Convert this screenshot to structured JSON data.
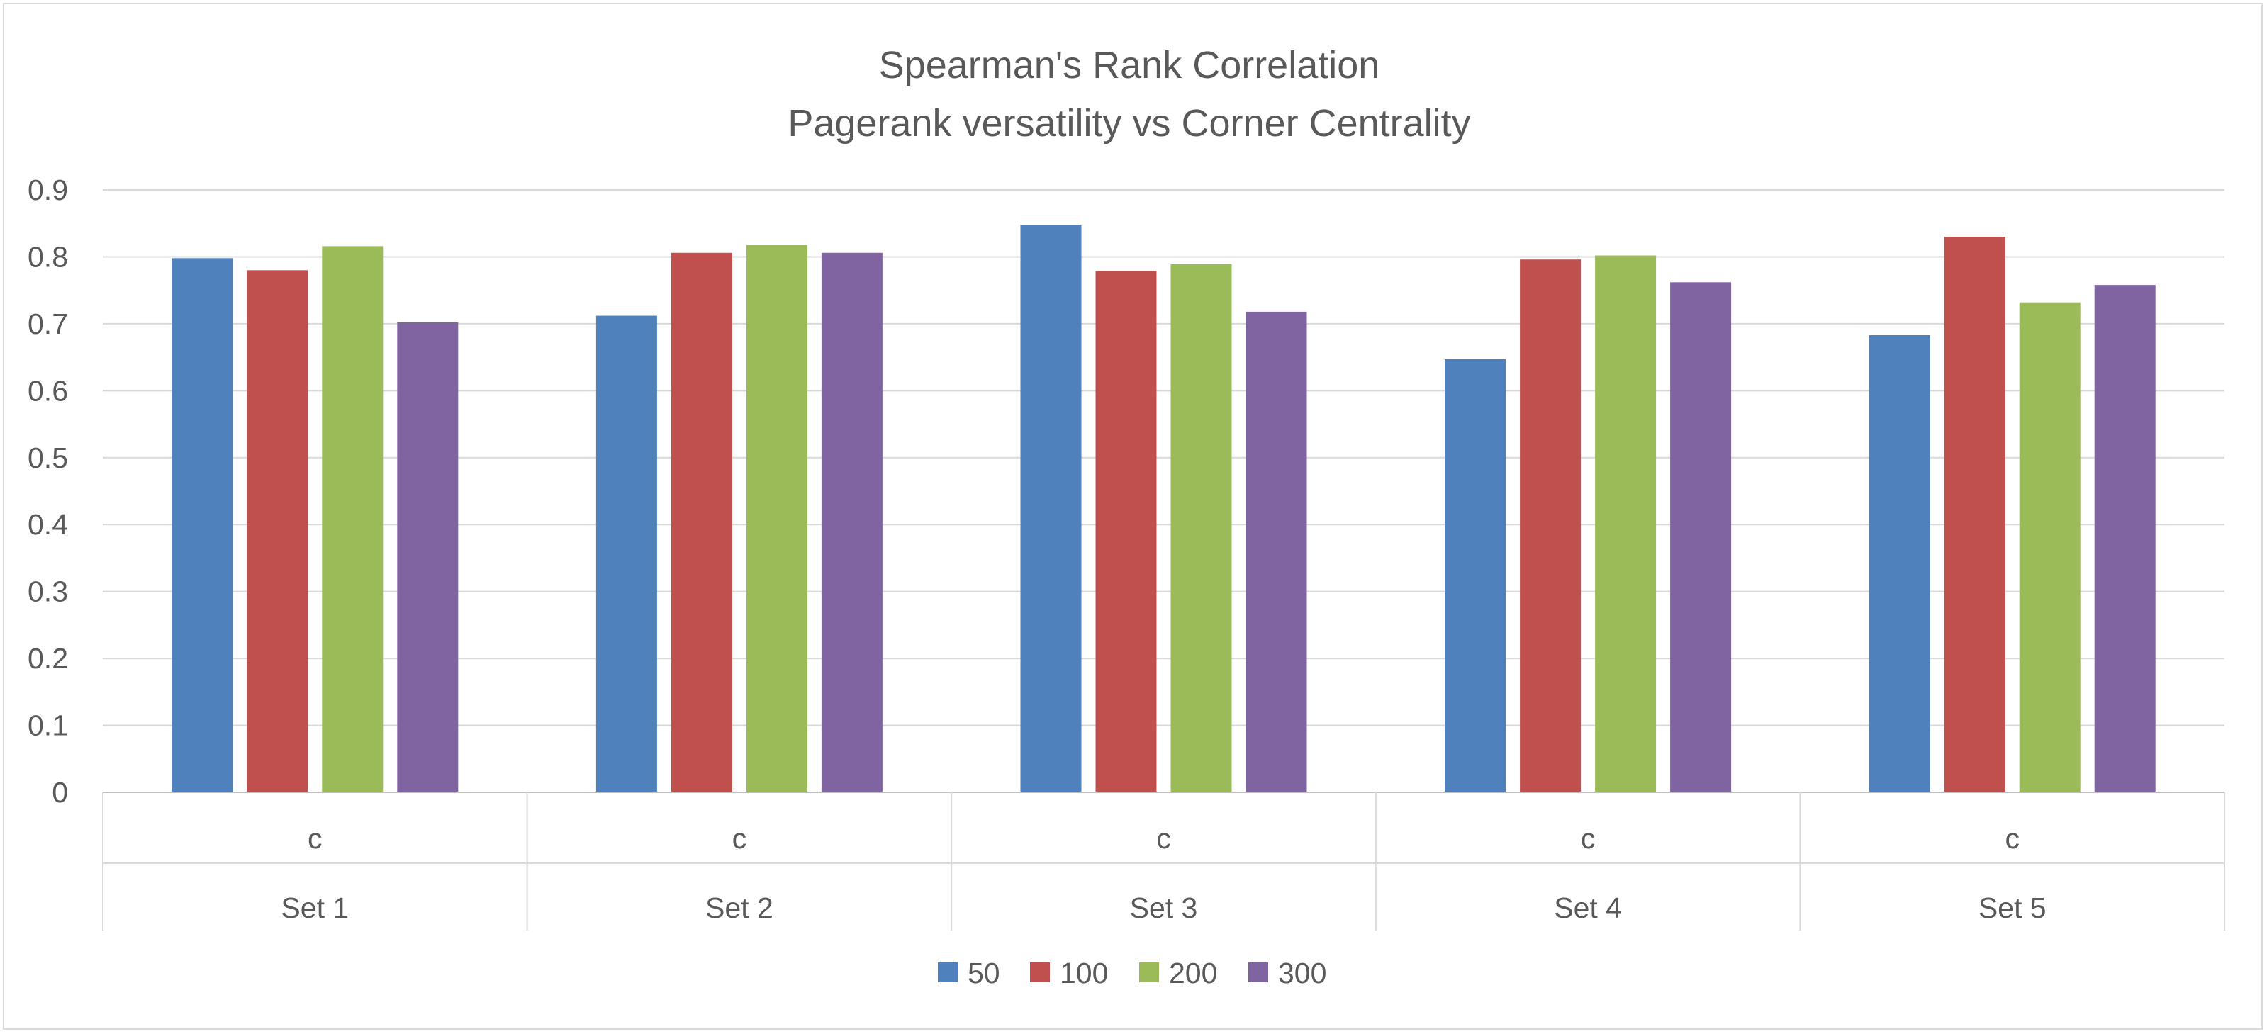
{
  "chart_data": {
    "type": "bar",
    "title": [
      "Spearman's Rank Correlation",
      "Pagerank versatility vs Corner Centrality"
    ],
    "xlabel": "",
    "ylabel": "",
    "ylim": [
      0,
      0.9
    ],
    "yticks": [
      "0",
      "0.1",
      "0.2",
      "0.3",
      "0.4",
      "0.5",
      "0.6",
      "0.7",
      "0.8",
      "0.9"
    ],
    "grid": true,
    "legend_position": "bottom",
    "categories": [
      {
        "group": "Set 1",
        "sub": "c"
      },
      {
        "group": "Set 2",
        "sub": "c"
      },
      {
        "group": "Set 3",
        "sub": "c"
      },
      {
        "group": "Set 4",
        "sub": "c"
      },
      {
        "group": "Set 5",
        "sub": "c"
      }
    ],
    "series": [
      {
        "name": "50",
        "color": "#4f81bd",
        "values": [
          0.798,
          0.712,
          0.848,
          0.647,
          0.683
        ]
      },
      {
        "name": "100",
        "color": "#c0504d",
        "values": [
          0.78,
          0.806,
          0.779,
          0.796,
          0.83
        ]
      },
      {
        "name": "200",
        "color": "#9bbb59",
        "values": [
          0.816,
          0.818,
          0.789,
          0.802,
          0.732
        ]
      },
      {
        "name": "300",
        "color": "#8064a2",
        "values": [
          0.702,
          0.806,
          0.718,
          0.762,
          0.758
        ]
      }
    ]
  }
}
